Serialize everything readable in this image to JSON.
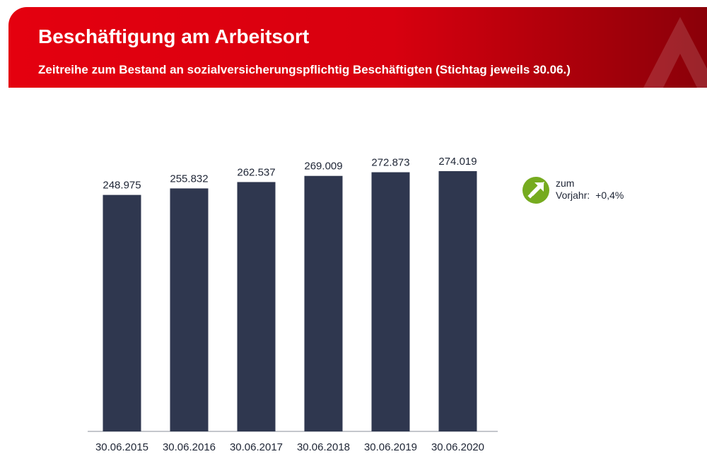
{
  "header": {
    "title": "Beschäftigung am Arbeitsort",
    "subtitle": "Zeitreihe zum Bestand an sozialversicherungspflichtig Beschäftigten (Stichtag jeweils 30.06.)"
  },
  "comparison": {
    "label_line1": "zum",
    "label_line2": "Vorjahr:",
    "value": "+0,4%",
    "icon": "arrow-up-right-icon",
    "icon_color": "#76ab1f"
  },
  "colors": {
    "header_red": "#e4000f",
    "bar": "#2f374f",
    "text": "#1e2535"
  },
  "chart_data": {
    "type": "bar",
    "title": "",
    "xlabel": "",
    "ylabel": "",
    "categories": [
      "30.06.2015",
      "30.06.2016",
      "30.06.2017",
      "30.06.2018",
      "30.06.2019",
      "30.06.2020"
    ],
    "values": [
      248975,
      255832,
      262537,
      269009,
      272873,
      274019
    ],
    "value_labels": [
      "248.975",
      "255.832",
      "262.537",
      "269.009",
      "272.873",
      "274.019"
    ],
    "ylim": [
      0,
      274019
    ],
    "grid": false,
    "legend": false
  }
}
